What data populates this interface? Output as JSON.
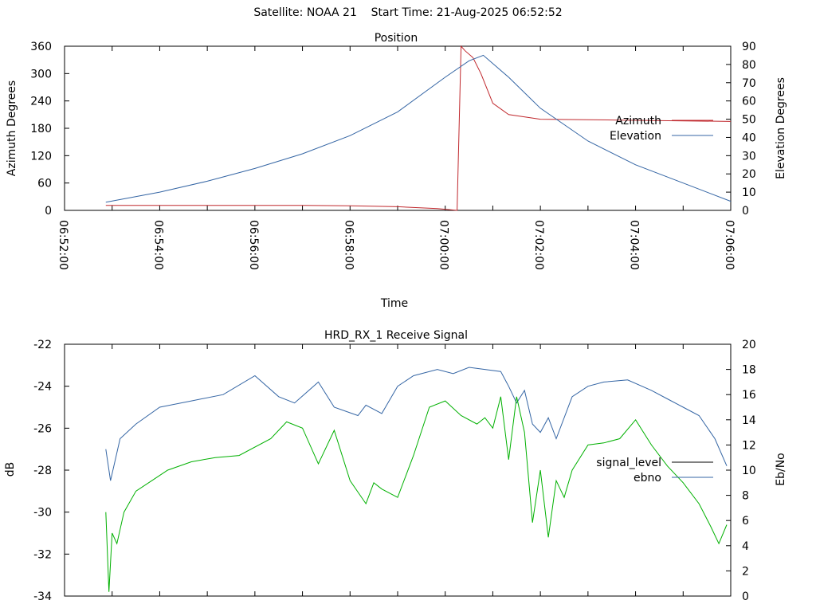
{
  "header": {
    "title": "Satellite: NOAA 21    Start Time: 21-Aug-2025 06:52:52"
  },
  "colors": {
    "azimuth": "#c0282d",
    "elevation": "#3465a4",
    "ebno": "#00b000",
    "signal_level": "#000000"
  },
  "chart_data": [
    {
      "type": "line",
      "title": "Position",
      "xlabel": "Time",
      "ylabel": "Azimuth Degrees",
      "y2label": "Elevation Degrees",
      "x_ticks": [
        "06:52:00",
        "06:54:00",
        "06:56:00",
        "06:58:00",
        "07:00:00",
        "07:02:00",
        "07:04:00",
        "07:06:00"
      ],
      "x_range_seconds": [
        0,
        840
      ],
      "ylim": [
        0,
        360
      ],
      "y2lim": [
        0,
        90
      ],
      "y_ticks": [
        0,
        60,
        120,
        180,
        240,
        300,
        360
      ],
      "y2_ticks": [
        0,
        10,
        20,
        30,
        40,
        50,
        60,
        70,
        80,
        90
      ],
      "legend_position": "right",
      "series": [
        {
          "name": "Azimuth",
          "axis": "left",
          "color": "#c0282d",
          "x": [
            52,
            120,
            300,
            360,
            420,
            470,
            495,
            500,
            505,
            515,
            525,
            540,
            560,
            600,
            700,
            840
          ],
          "y": [
            11,
            11,
            11,
            10,
            8,
            4,
            0,
            360,
            350,
            335,
            300,
            235,
            210,
            200,
            198,
            195
          ]
        },
        {
          "name": "Elevation",
          "axis": "right",
          "color": "#3465a4",
          "x": [
            52,
            120,
            180,
            240,
            300,
            360,
            420,
            480,
            510,
            528,
            560,
            600,
            660,
            720,
            780,
            840
          ],
          "y": [
            4.5,
            10,
            16,
            23,
            31,
            41,
            54,
            73,
            82,
            85,
            73,
            56,
            38,
            25,
            15,
            5
          ]
        }
      ]
    },
    {
      "type": "line",
      "title": "HRD_RX_1 Receive Signal",
      "ylabel": "dB",
      "y2label": "Eb/No",
      "ylim": [
        -34,
        -22
      ],
      "y2lim": [
        0,
        20
      ],
      "y_ticks": [
        -34,
        -32,
        -30,
        -28,
        -26,
        -24,
        -22
      ],
      "y2_ticks": [
        0,
        2,
        4,
        6,
        8,
        10,
        12,
        14,
        16,
        18,
        20
      ],
      "x_range_seconds": [
        0,
        840
      ],
      "legend_position": "right",
      "series": [
        {
          "name": "signal_level",
          "color": "#000000",
          "x": [],
          "y": []
        },
        {
          "name": "ebno",
          "axis": "left",
          "color": "#3465a4",
          "x": [
            52,
            58,
            70,
            90,
            120,
            160,
            200,
            240,
            270,
            290,
            320,
            340,
            370,
            380,
            400,
            420,
            440,
            470,
            490,
            510,
            530,
            550,
            560,
            570,
            580,
            590,
            600,
            610,
            620,
            640,
            660,
            680,
            710,
            740,
            760,
            780,
            800,
            820,
            835
          ],
          "y": [
            -27,
            -28.5,
            -26.5,
            -25.8,
            -25,
            -24.7,
            -24.4,
            -23.5,
            -24.5,
            -24.8,
            -23.8,
            -25,
            -25.4,
            -24.9,
            -25.3,
            -24,
            -23.5,
            -23.2,
            -23.4,
            -23.1,
            -23.2,
            -23.3,
            -24,
            -24.8,
            -24.2,
            -25.8,
            -26.2,
            -25.5,
            -26.5,
            -24.5,
            -24,
            -23.8,
            -23.7,
            -24.2,
            -24.6,
            -25,
            -25.4,
            -26.5,
            -27.8
          ]
        },
        {
          "name": "",
          "axis": "left",
          "color": "#00b000",
          "x": [
            52,
            56,
            60,
            66,
            75,
            90,
            110,
            130,
            160,
            190,
            220,
            260,
            280,
            300,
            320,
            340,
            360,
            380,
            390,
            400,
            420,
            440,
            460,
            480,
            500,
            520,
            530,
            540,
            550,
            560,
            570,
            580,
            590,
            600,
            610,
            620,
            630,
            640,
            660,
            680,
            700,
            720,
            740,
            760,
            780,
            800,
            815,
            825,
            835
          ],
          "y": [
            -30,
            -33.8,
            -31,
            -31.5,
            -30,
            -29,
            -28.5,
            -28,
            -27.6,
            -27.4,
            -27.3,
            -26.5,
            -25.7,
            -26,
            -27.7,
            -26.1,
            -28.5,
            -29.6,
            -28.6,
            -28.9,
            -29.3,
            -27.3,
            -25,
            -24.7,
            -25.4,
            -25.8,
            -25.5,
            -26,
            -24.5,
            -27.5,
            -24.5,
            -26.2,
            -30.5,
            -28,
            -31.2,
            -28.5,
            -29.3,
            -28,
            -26.8,
            -26.7,
            -26.5,
            -25.6,
            -26.8,
            -27.8,
            -28.6,
            -29.6,
            -30.7,
            -31.5,
            -30.6
          ]
        }
      ]
    }
  ]
}
